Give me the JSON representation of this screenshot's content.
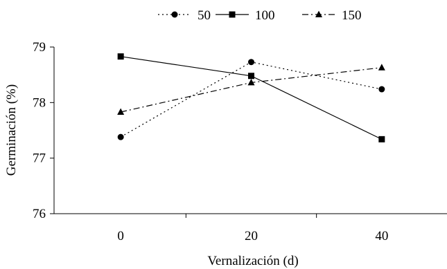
{
  "chart_data": {
    "type": "line",
    "x": [
      0,
      20,
      40
    ],
    "series": [
      {
        "name": "50",
        "values": [
          77.38,
          78.73,
          78.24
        ],
        "marker": "circle",
        "dash": "dotted"
      },
      {
        "name": "100",
        "values": [
          78.83,
          78.48,
          77.34
        ],
        "marker": "square",
        "dash": "solid"
      },
      {
        "name": "150",
        "values": [
          77.83,
          78.36,
          78.63
        ],
        "marker": "triangle",
        "dash": "dashdot"
      }
    ],
    "xlabel": "Vernalización (d)",
    "ylabel": "Germinación (%)",
    "xticks": [
      "0",
      "20",
      "40"
    ],
    "yticks": [
      "76",
      "77",
      "78",
      "79"
    ],
    "ylim": [
      76,
      79
    ],
    "grid": false,
    "legend_position": "top",
    "colors": {
      "line": "#000000",
      "background": "#ffffff"
    }
  }
}
